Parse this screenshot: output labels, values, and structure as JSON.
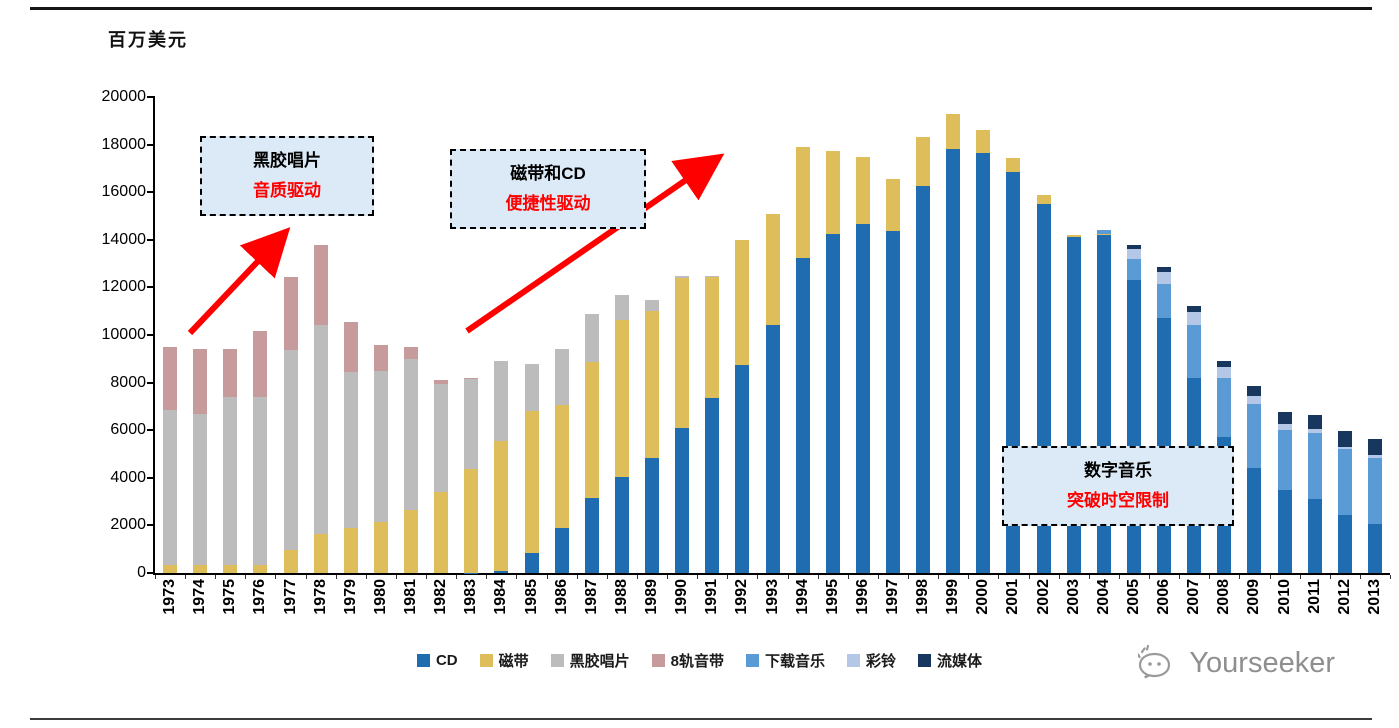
{
  "header": {
    "unit_label": "百万美元"
  },
  "annotations": {
    "vinyl": {
      "line1": "黑胶唱片",
      "line2": "音质驱动"
    },
    "tape_cd": {
      "line1": "磁带和CD",
      "line2": "便捷性驱动"
    },
    "digital": {
      "line1": "数字音乐",
      "line2": "突破时空限制"
    }
  },
  "watermark": {
    "text": "Yourseeker"
  },
  "chart_data": {
    "type": "bar",
    "stacked": true,
    "title": "",
    "ylabel": "百万美元",
    "xlabel": "",
    "ylim": [
      0,
      20000
    ],
    "ytick_step": 2000,
    "grid": false,
    "legend_position": "bottom",
    "annotation_arrow_color": "#FF0000",
    "categories": [
      "1973",
      "1974",
      "1975",
      "1976",
      "1977",
      "1978",
      "1979",
      "1980",
      "1981",
      "1982",
      "1983",
      "1984",
      "1985",
      "1986",
      "1987",
      "1988",
      "1989",
      "1990",
      "1991",
      "1992",
      "1993",
      "1994",
      "1995",
      "1996",
      "1997",
      "1998",
      "1999",
      "2000",
      "2001",
      "2002",
      "2003",
      "2004",
      "2005",
      "2006",
      "2007",
      "2008",
      "2009",
      "2010",
      "2011",
      "2012",
      "2013"
    ],
    "series": [
      {
        "name": "CD",
        "color": "#1F6CB0",
        "values": [
          0,
          0,
          0,
          0,
          0,
          0,
          0,
          0,
          0,
          0,
          20,
          100,
          850,
          1900,
          3150,
          4050,
          4850,
          6100,
          7350,
          8750,
          10400,
          13250,
          14250,
          14650,
          14350,
          16250,
          17800,
          17650,
          16850,
          15500,
          14100,
          14200,
          12300,
          10700,
          8200,
          5700,
          4400,
          3500,
          3100,
          2450,
          2050
        ]
      },
      {
        "name": "磁带",
        "color": "#DDBE5B",
        "values": [
          350,
          350,
          350,
          350,
          950,
          1650,
          1900,
          2150,
          2650,
          3400,
          4350,
          5450,
          5950,
          5150,
          5700,
          6600,
          6150,
          6300,
          5100,
          5250,
          4700,
          4650,
          3500,
          2850,
          2200,
          2050,
          1500,
          950,
          600,
          400,
          100,
          50,
          0,
          0,
          0,
          0,
          0,
          0,
          0,
          0,
          0
        ]
      },
      {
        "name": "黑胶唱片",
        "color": "#BCBCBC",
        "values": [
          6500,
          6350,
          7050,
          7050,
          8400,
          8750,
          6550,
          6350,
          6350,
          4550,
          3800,
          3350,
          2000,
          2350,
          2050,
          1050,
          450,
          100,
          50,
          0,
          0,
          0,
          0,
          0,
          0,
          0,
          0,
          0,
          0,
          0,
          0,
          0,
          0,
          0,
          0,
          0,
          0,
          0,
          0,
          0,
          0
        ]
      },
      {
        "name": "8轨音带",
        "color": "#C79A9B",
        "values": [
          2650,
          2700,
          2000,
          2750,
          3100,
          3400,
          2100,
          1100,
          500,
          150,
          30,
          0,
          0,
          0,
          0,
          0,
          0,
          0,
          0,
          0,
          0,
          0,
          0,
          0,
          0,
          0,
          0,
          0,
          0,
          0,
          0,
          0,
          0,
          0,
          0,
          0,
          0,
          0,
          0,
          0,
          0
        ]
      },
      {
        "name": "下载音乐",
        "color": "#5B9BD5",
        "values": [
          0,
          0,
          0,
          0,
          0,
          0,
          0,
          0,
          0,
          0,
          0,
          0,
          0,
          0,
          0,
          0,
          0,
          0,
          0,
          0,
          0,
          0,
          0,
          0,
          0,
          0,
          0,
          0,
          0,
          0,
          0,
          150,
          900,
          1450,
          2200,
          2500,
          2700,
          2500,
          2800,
          2750,
          2800
        ]
      },
      {
        "name": "彩铃",
        "color": "#B4C7E7",
        "values": [
          0,
          0,
          0,
          0,
          0,
          0,
          0,
          0,
          0,
          0,
          0,
          0,
          0,
          0,
          0,
          0,
          0,
          0,
          0,
          0,
          0,
          0,
          0,
          0,
          0,
          0,
          0,
          0,
          0,
          0,
          0,
          0,
          400,
          500,
          550,
          450,
          350,
          250,
          150,
          100,
          100
        ]
      },
      {
        "name": "流媒体",
        "color": "#17375E",
        "values": [
          0,
          0,
          0,
          0,
          0,
          0,
          0,
          0,
          0,
          0,
          0,
          0,
          0,
          0,
          0,
          0,
          0,
          0,
          0,
          0,
          0,
          0,
          0,
          0,
          0,
          0,
          0,
          0,
          0,
          0,
          0,
          0,
          200,
          200,
          250,
          250,
          400,
          500,
          600,
          650,
          700
        ]
      }
    ]
  }
}
